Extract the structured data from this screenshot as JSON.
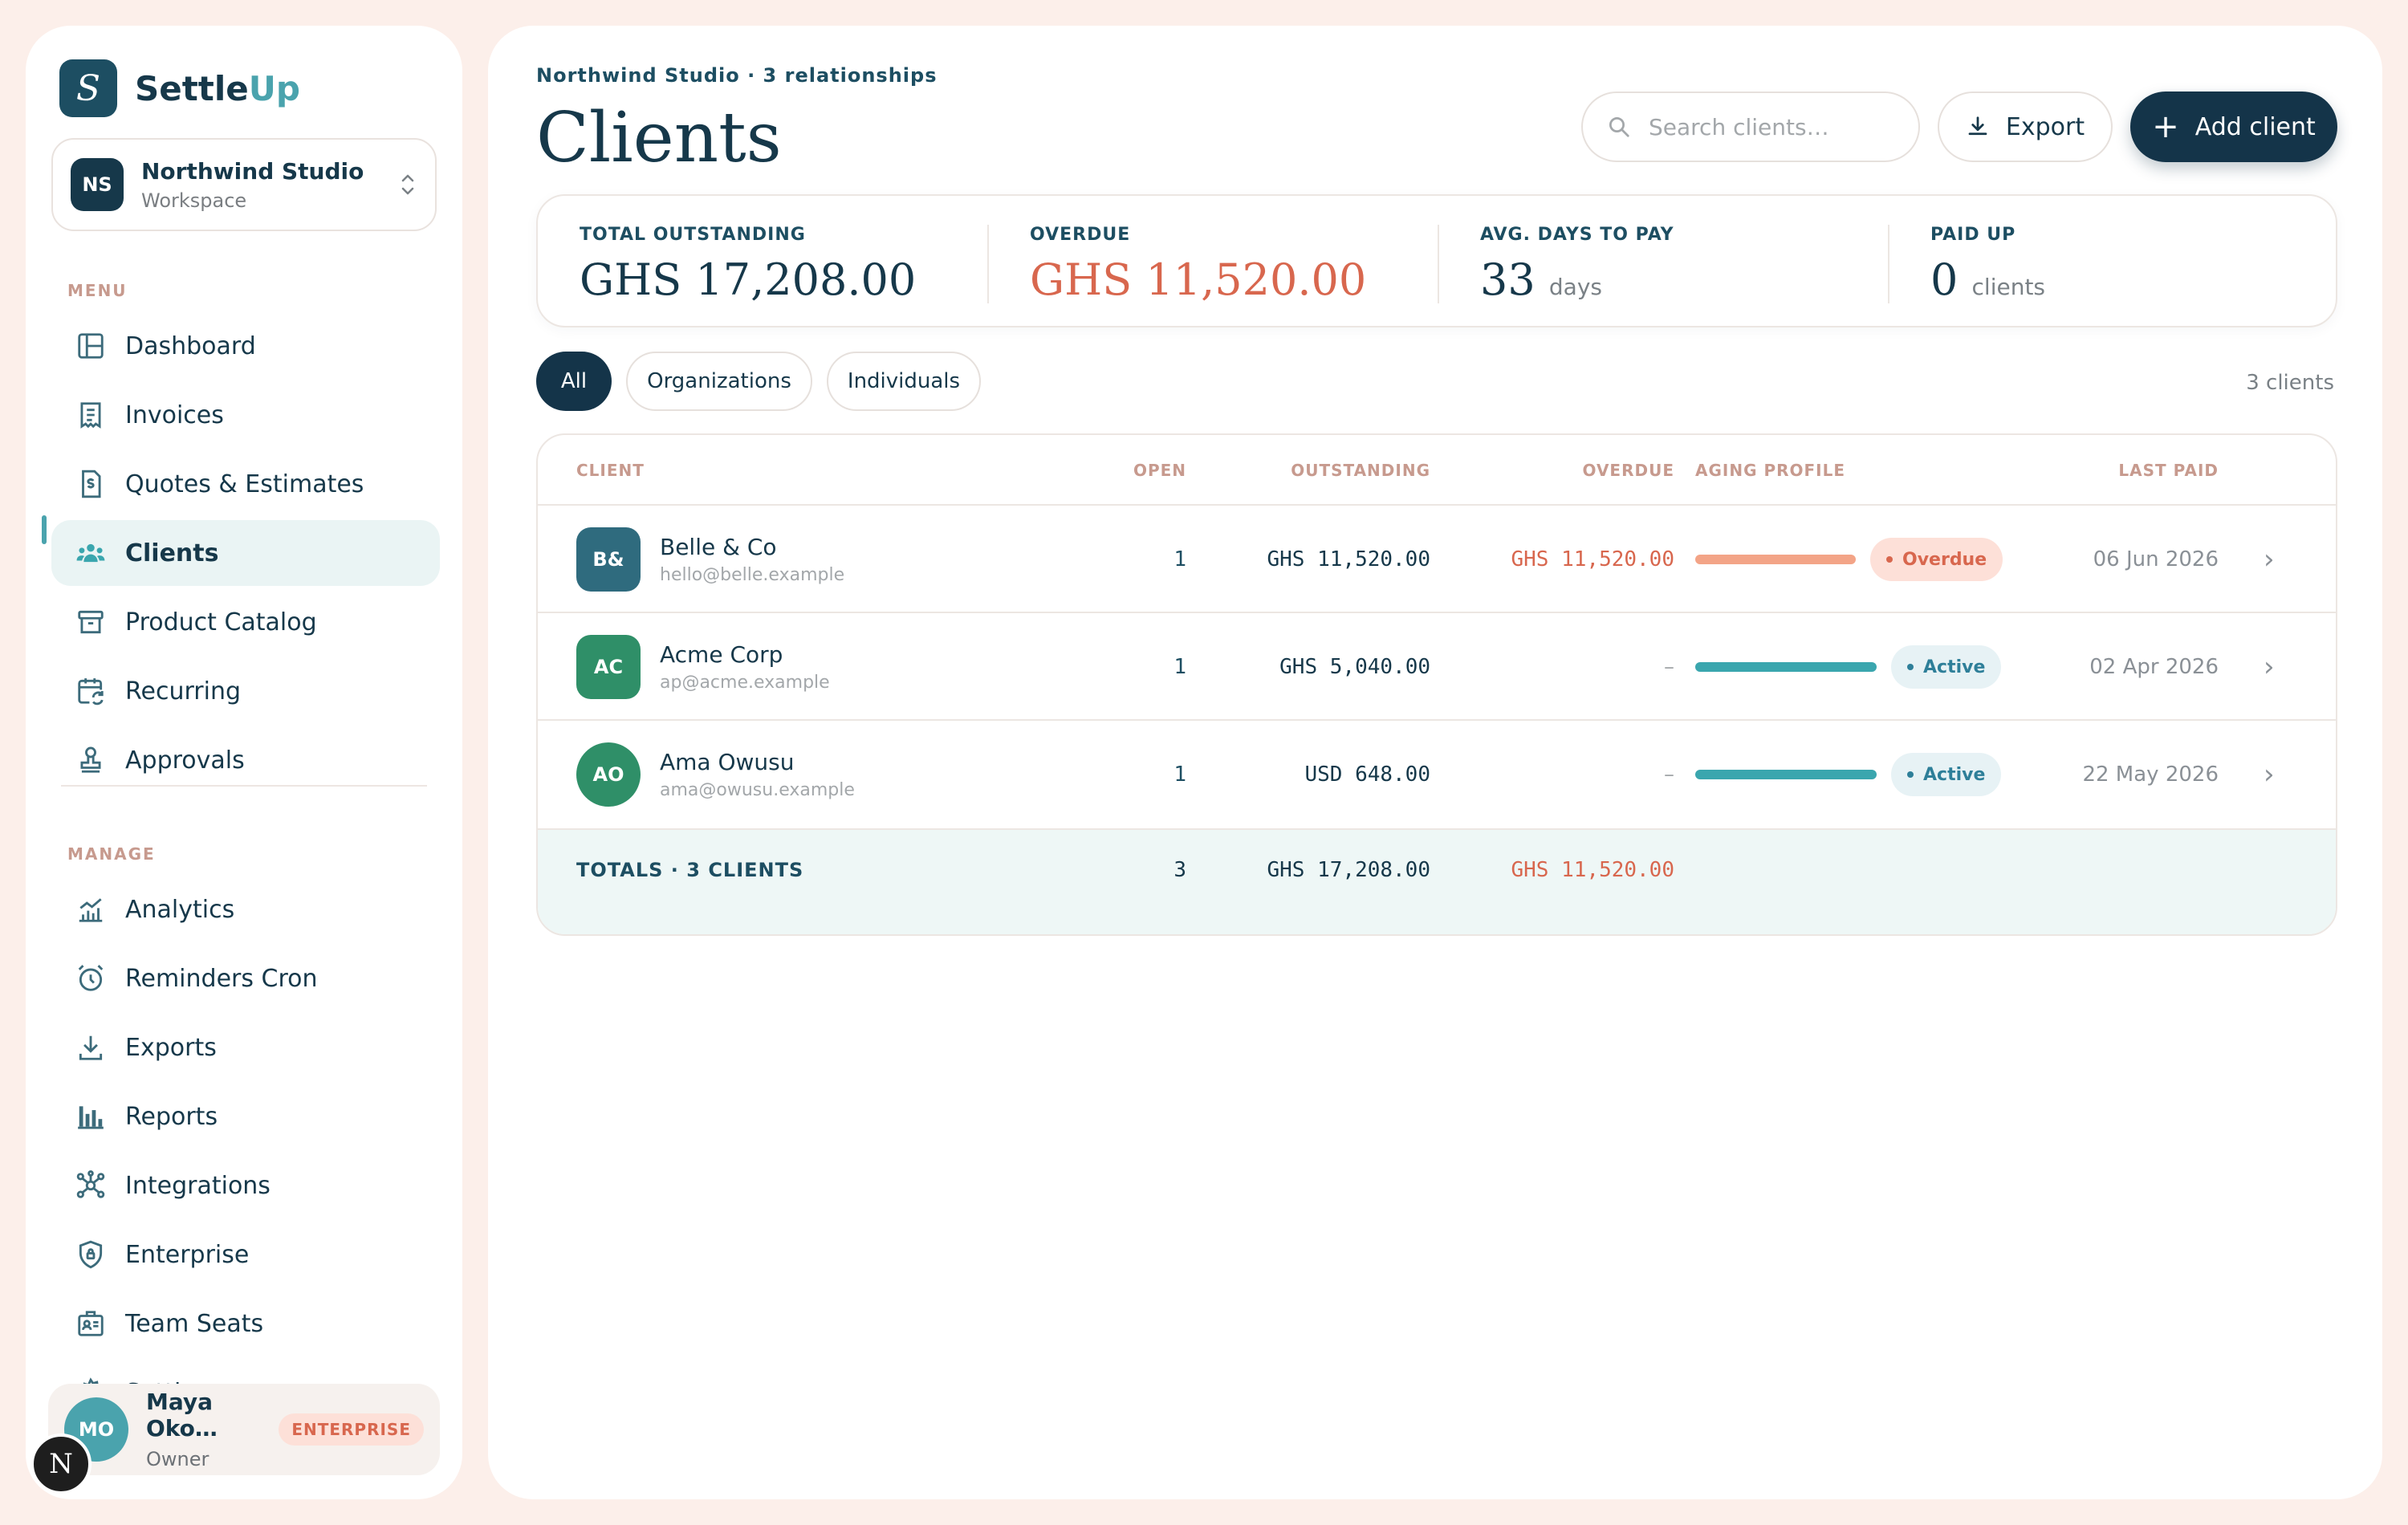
{
  "brand": {
    "name_main": "Settle",
    "name_accent": "Up",
    "logo_letter": "S"
  },
  "workspace": {
    "initials": "NS",
    "name": "Northwind Studio",
    "sub": "Workspace"
  },
  "menu_label": "MENU",
  "menu_items": [
    {
      "label": "Dashboard",
      "icon": "layout-icon"
    },
    {
      "label": "Invoices",
      "icon": "invoice-icon"
    },
    {
      "label": "Quotes & Estimates",
      "icon": "quote-icon"
    },
    {
      "label": "Clients",
      "icon": "users-icon",
      "active": true
    },
    {
      "label": "Product Catalog",
      "icon": "archive-icon"
    },
    {
      "label": "Recurring",
      "icon": "calendar-repeat-icon"
    },
    {
      "label": "Approvals",
      "icon": "stamp-icon"
    }
  ],
  "manage_label": "MANAGE",
  "manage_items": [
    {
      "label": "Analytics",
      "icon": "analytics-icon"
    },
    {
      "label": "Reminders Cron",
      "icon": "alarm-icon"
    },
    {
      "label": "Exports",
      "icon": "download-icon"
    },
    {
      "label": "Reports",
      "icon": "bar-chart-icon"
    },
    {
      "label": "Integrations",
      "icon": "network-icon"
    },
    {
      "label": "Enterprise",
      "icon": "shield-icon"
    },
    {
      "label": "Team Seats",
      "icon": "id-card-icon"
    },
    {
      "label": "Settings",
      "icon": "gear-icon"
    }
  ],
  "user": {
    "initials": "MO",
    "name": "Maya Oko…",
    "role": "Owner",
    "plan": "ENTERPRISE"
  },
  "dev_badge": "N",
  "header": {
    "breadcrumb": "Northwind Studio · 3 relationships",
    "title": "Clients",
    "search_placeholder": "Search clients…",
    "export_label": "Export",
    "add_label": "Add client"
  },
  "stats": [
    {
      "label": "TOTAL OUTSTANDING",
      "value": "GHS 17,208.00",
      "unit": ""
    },
    {
      "label": "OVERDUE",
      "value": "GHS 11,520.00",
      "unit": ""
    },
    {
      "label": "AVG. DAYS TO PAY",
      "value": "33",
      "unit": "days"
    },
    {
      "label": "PAID UP",
      "value": "0",
      "unit": "clients"
    }
  ],
  "filters": {
    "all": "All",
    "organizations": "Organizations",
    "individuals": "Individuals",
    "count": "3 clients"
  },
  "table": {
    "headers": {
      "client": "CLIENT",
      "open": "OPEN",
      "outstanding": "OUTSTANDING",
      "overdue": "OVERDUE",
      "aging": "AGING PROFILE",
      "last_paid": "LAST PAID"
    },
    "rows": [
      {
        "initials": "B&",
        "name": "Belle & Co",
        "email": "hello@belle.example",
        "open": "1",
        "outstanding": "GHS 11,520.00",
        "overdue": "GHS 11,520.00",
        "status": "Overdue",
        "last_paid": "06 Jun 2026",
        "avatar_color": "#2f6b7e",
        "aging_color": "#f3a487"
      },
      {
        "initials": "AC",
        "name": "Acme Corp",
        "email": "ap@acme.example",
        "open": "1",
        "outstanding": "GHS 5,040.00",
        "overdue": "–",
        "status": "Active",
        "last_paid": "02 Apr 2026",
        "avatar_color": "#2f8f68",
        "aging_color": "#3aa6ae"
      },
      {
        "initials": "AO",
        "name": "Ama Owusu",
        "email": "ama@owusu.example",
        "open": "1",
        "outstanding": "USD 648.00",
        "overdue": "–",
        "status": "Active",
        "last_paid": "22 May 2026",
        "avatar_color": "#2f8f68",
        "aging_color": "#3aa6ae"
      }
    ],
    "totals": {
      "label": "TOTALS · 3 CLIENTS",
      "open": "3",
      "outstanding": "GHS 17,208.00",
      "overdue": "GHS 11,520.00"
    }
  }
}
